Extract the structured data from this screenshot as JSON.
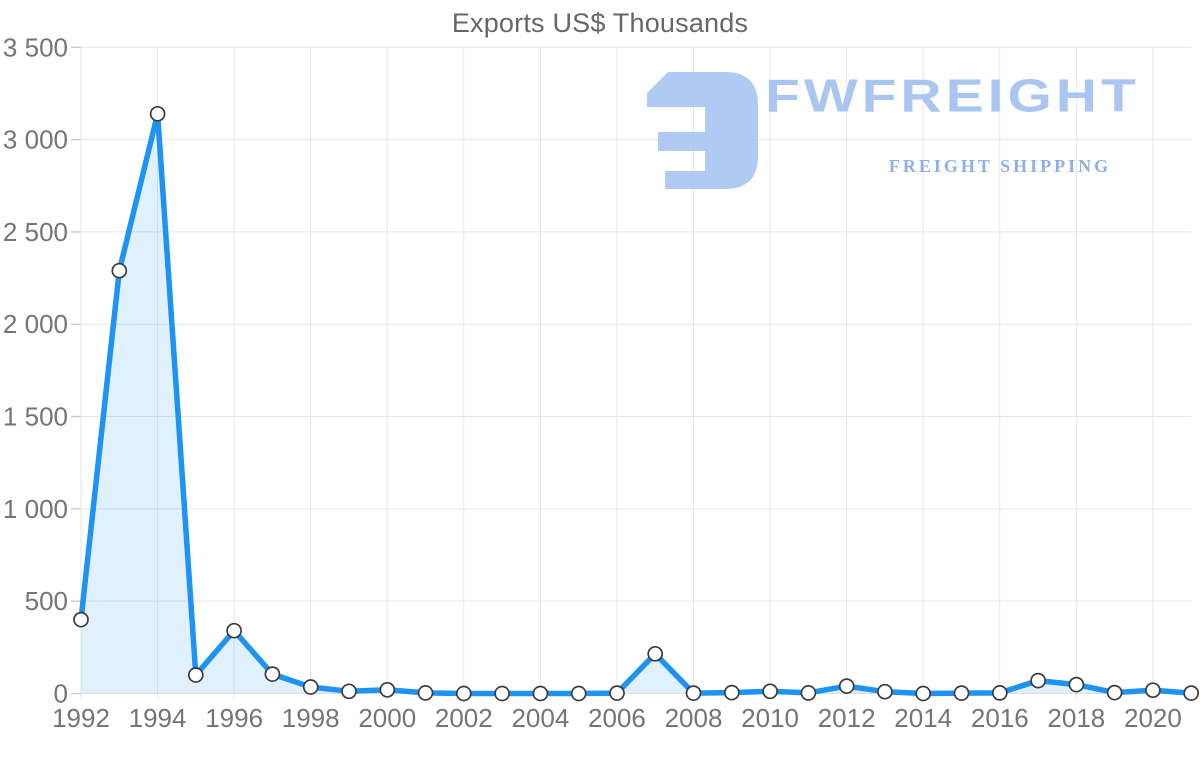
{
  "title": "Exports US$ Thousands",
  "watermark": {
    "brand": "FWFREIGHT",
    "tagline": "FREIGHT SHIPPING",
    "icon": "fwfreight-logo-icon",
    "color": "#a7c2f1"
  },
  "chart_data": {
    "type": "area",
    "title": "Exports US$ Thousands",
    "xlabel": "",
    "ylabel": "",
    "x": [
      1992,
      1993,
      1994,
      1995,
      1996,
      1997,
      1998,
      1999,
      2000,
      2001,
      2002,
      2003,
      2004,
      2005,
      2006,
      2007,
      2008,
      2009,
      2010,
      2011,
      2012,
      2013,
      2014,
      2015,
      2016,
      2017,
      2018,
      2019,
      2020,
      2021
    ],
    "values": [
      400,
      2290,
      3140,
      100,
      340,
      105,
      35,
      12,
      20,
      3,
      0,
      0,
      0,
      0,
      2,
      215,
      2,
      5,
      12,
      3,
      40,
      10,
      0,
      2,
      3,
      70,
      48,
      5,
      18,
      2
    ],
    "ylim": [
      0,
      3500
    ],
    "y_ticks": [
      0,
      500,
      1000,
      1500,
      2000,
      2500,
      3000,
      3500
    ],
    "x_tick_labels": [
      1992,
      1994,
      1996,
      1998,
      2000,
      2002,
      2004,
      2006,
      2008,
      2010,
      2012,
      2014,
      2016,
      2018,
      2020
    ],
    "grid": true,
    "legend_position": "none",
    "line_color": "#1d93f3",
    "area_fill": "rgba(33,150,243,0.14)",
    "grid_color": "#e6e6e6",
    "tick_color": "#cccccc",
    "label_color": "#757575",
    "marker": "white-circle-dark-ring"
  }
}
